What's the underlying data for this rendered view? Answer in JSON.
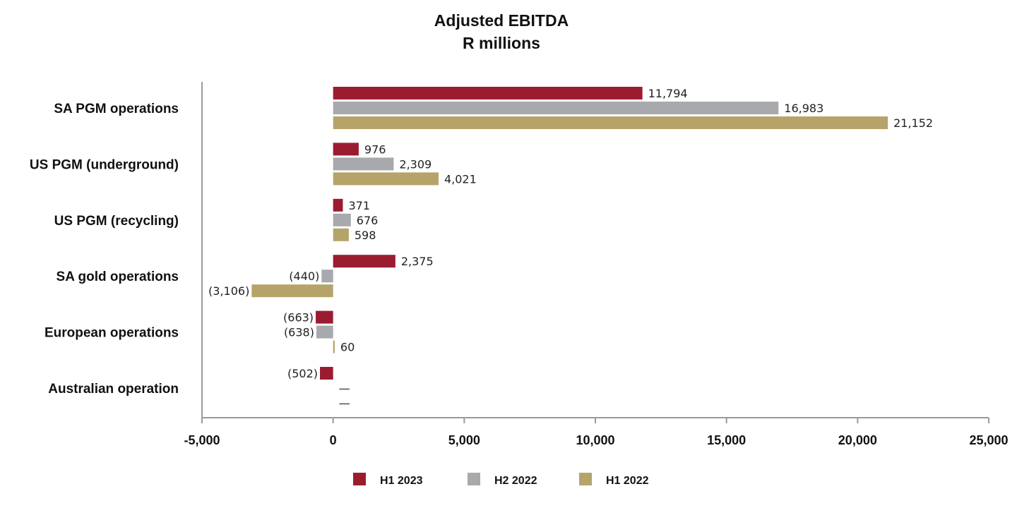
{
  "chart_data": {
    "type": "bar",
    "orientation": "horizontal",
    "title": "Adjusted EBITDA",
    "subtitle": "R millions",
    "categories": [
      "SA PGM operations",
      "US PGM (underground)",
      "US PGM (recycling)",
      "SA gold operations",
      "European operations",
      "Australian operation"
    ],
    "series": [
      {
        "name": "H1 2023",
        "color": "#9b1c31",
        "values": [
          11794,
          976,
          371,
          2375,
          -663,
          -502
        ],
        "labels": [
          "11,794",
          "976",
          "371",
          "2,375",
          "(663)",
          "(502)"
        ]
      },
      {
        "name": "H2 2022",
        "color": "#a7a9ac",
        "values": [
          16983,
          2309,
          676,
          -440,
          -638,
          null
        ],
        "labels": [
          "16,983",
          "2,309",
          "676",
          "(440)",
          "(638)",
          "—"
        ]
      },
      {
        "name": "H1 2022",
        "color": "#b5a36a",
        "values": [
          21152,
          4021,
          598,
          -3106,
          60,
          null
        ],
        "labels": [
          "21,152",
          "4,021",
          "598",
          "(3,106)",
          "60",
          "—"
        ]
      }
    ],
    "x_ticks": [
      -5000,
      0,
      5000,
      10000,
      15000,
      20000,
      25000
    ],
    "x_tick_labels": [
      "-5,000",
      "0",
      "5,000",
      "10,000",
      "15,000",
      "20,000",
      "25,000"
    ],
    "xlim": [
      -5000,
      25000
    ],
    "grid": false,
    "legend_position": "bottom"
  }
}
